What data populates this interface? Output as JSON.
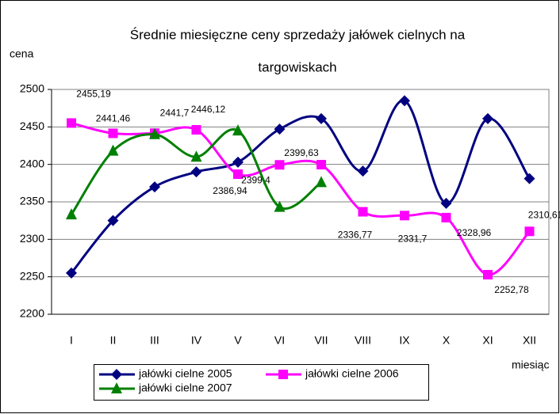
{
  "chart_data": {
    "type": "line",
    "title": [
      "Średnie miesięczne ceny sprzedaży jałówek cielnych na",
      "targowiskach"
    ],
    "y_label": "cena",
    "x_label": "miesiąc",
    "categories": [
      "I",
      "II",
      "III",
      "IV",
      "V",
      "VI",
      "VII",
      "VIII",
      "IX",
      "X",
      "XI",
      "XII"
    ],
    "series": [
      {
        "name": "jałówki cielne 2005",
        "color": "#000080",
        "marker": "diamond",
        "values": [
          2255,
          2325,
          2370,
          2390,
          2403,
          2447,
          2461,
          2391,
          2485,
          2348,
          2461,
          2381
        ]
      },
      {
        "name": "jałówki cielne 2006",
        "color": "#ff00ff",
        "marker": "square",
        "values": [
          2455.19,
          2441.46,
          2441.7,
          2446.12,
          2386.94,
          2399.4,
          2399.63,
          2336.77,
          2331.7,
          2328.96,
          2252.78,
          2310.61
        ],
        "value_labels": [
          "2455,19",
          "2441,46",
          "2441,7",
          "2446,12",
          "2386,94",
          "2399,4",
          "2399,63",
          "2336,77",
          "2331,7",
          "2328,96",
          "2252,78",
          "2310,61"
        ]
      },
      {
        "name": "jałówki cielne 2007",
        "color": "#008000",
        "marker": "triangle",
        "values": [
          2333,
          2418,
          2440,
          2410,
          2445,
          2343,
          2376,
          null,
          null,
          null,
          null,
          null
        ]
      }
    ],
    "ylim": [
      2200,
      2500
    ],
    "yticks": [
      2200,
      2250,
      2300,
      2350,
      2400,
      2450,
      2500
    ],
    "grid": true,
    "smooth": true,
    "legend": "bottom"
  }
}
